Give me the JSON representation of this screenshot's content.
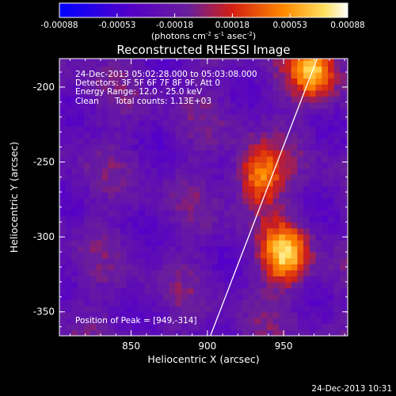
{
  "chart_data": {
    "type": "heatmap",
    "title": "Reconstructed RHESSI Image",
    "xlabel": "Heliocentric X (arcsec)",
    "ylabel": "Heliocentric Y (arcsec)",
    "xlim": [
      803,
      992
    ],
    "ylim": [
      -366,
      -181
    ],
    "xticks": [
      850,
      900,
      950
    ],
    "yticks": [
      -200,
      -250,
      -300,
      -350
    ],
    "colorbar": {
      "range": [
        -0.00088,
        0.00088
      ],
      "ticks": [
        "-0.00088",
        "-0.00053",
        "-0.00018",
        "0.00018",
        "0.00053",
        "0.00088"
      ],
      "label": "(photons cm",
      "label_exp1": "-2",
      "label_mid": " s",
      "label_exp2": "-1",
      "label_mid2": " asec",
      "label_exp3": "-2",
      "label_end": ")"
    },
    "sources": [
      {
        "x": 949,
        "y": -314,
        "peak": 0.00088
      },
      {
        "x": 932,
        "y": -262,
        "peak": 0.00075
      },
      {
        "x": 968,
        "y": -190,
        "peak": 0.00082
      }
    ],
    "annotations": {
      "time_range": "24-Dec-2013 05:02:28.000 to 05:03:08.000",
      "detectors": "Detectors: 3F 5F 6F 7F 8F 9F, Att 0",
      "energy": "Energy Range: 12.0 - 25.0 keV",
      "clean": "Clean",
      "counts": "Total counts: 1.13E+03",
      "peak": "Position of Peak = [949,-314]"
    },
    "limb_line": [
      [
        902,
        -366
      ],
      [
        972,
        -181
      ]
    ]
  },
  "footer": {
    "timestamp": "24-Dec-2013 10:31"
  }
}
